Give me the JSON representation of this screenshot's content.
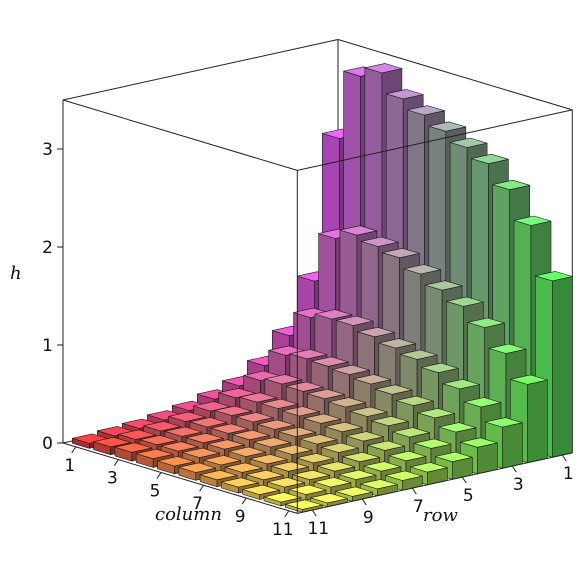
{
  "chart_data": {
    "type": "bar3d",
    "rows": [
      1,
      2,
      3,
      4,
      5,
      6,
      7,
      8,
      9,
      10,
      11
    ],
    "columns": [
      1,
      2,
      3,
      4,
      5,
      6,
      7,
      8,
      9,
      10,
      11
    ],
    "values": [
      [
        2.6,
        3.3,
        3.4,
        3.2,
        3.1,
        3.0,
        2.9,
        2.8,
        2.6,
        2.3,
        1.8
      ],
      [
        1.2,
        1.7,
        1.8,
        1.75,
        1.7,
        1.6,
        1.5,
        1.4,
        1.25,
        1.05,
        0.8
      ],
      [
        0.7,
        0.95,
        1.0,
        1.0,
        0.95,
        0.9,
        0.85,
        0.78,
        0.68,
        0.56,
        0.42
      ],
      [
        0.45,
        0.62,
        0.65,
        0.64,
        0.62,
        0.59,
        0.55,
        0.5,
        0.44,
        0.36,
        0.27
      ],
      [
        0.3,
        0.42,
        0.45,
        0.44,
        0.43,
        0.41,
        0.38,
        0.35,
        0.3,
        0.25,
        0.18
      ],
      [
        0.22,
        0.3,
        0.32,
        0.32,
        0.31,
        0.3,
        0.28,
        0.25,
        0.22,
        0.18,
        0.13
      ],
      [
        0.16,
        0.22,
        0.24,
        0.24,
        0.23,
        0.22,
        0.21,
        0.19,
        0.16,
        0.13,
        0.1
      ],
      [
        0.12,
        0.17,
        0.18,
        0.18,
        0.18,
        0.17,
        0.16,
        0.14,
        0.12,
        0.1,
        0.07
      ],
      [
        0.09,
        0.13,
        0.14,
        0.14,
        0.14,
        0.13,
        0.12,
        0.11,
        0.09,
        0.08,
        0.05
      ],
      [
        0.07,
        0.1,
        0.11,
        0.11,
        0.11,
        0.1,
        0.09,
        0.08,
        0.07,
        0.06,
        0.04
      ],
      [
        0.05,
        0.08,
        0.09,
        0.09,
        0.08,
        0.08,
        0.07,
        0.06,
        0.05,
        0.04,
        0.03
      ]
    ],
    "zlim": [
      0,
      3.5
    ],
    "z_ticks": [
      "0",
      "1",
      "2",
      "3"
    ],
    "column_ticks": [
      "1",
      "3",
      "5",
      "7",
      "9",
      "11"
    ],
    "row_ticks": [
      "1",
      "3",
      "5",
      "7",
      "9",
      "11"
    ],
    "xlabel": "column",
    "ylabel": "row",
    "zlabel": "h",
    "colors": {
      "corner_low": "#e13a3a",
      "corner_high_column": "#f6f05a",
      "corner_high_row": "#d65ae6",
      "corner_far": "#5ef060"
    }
  }
}
